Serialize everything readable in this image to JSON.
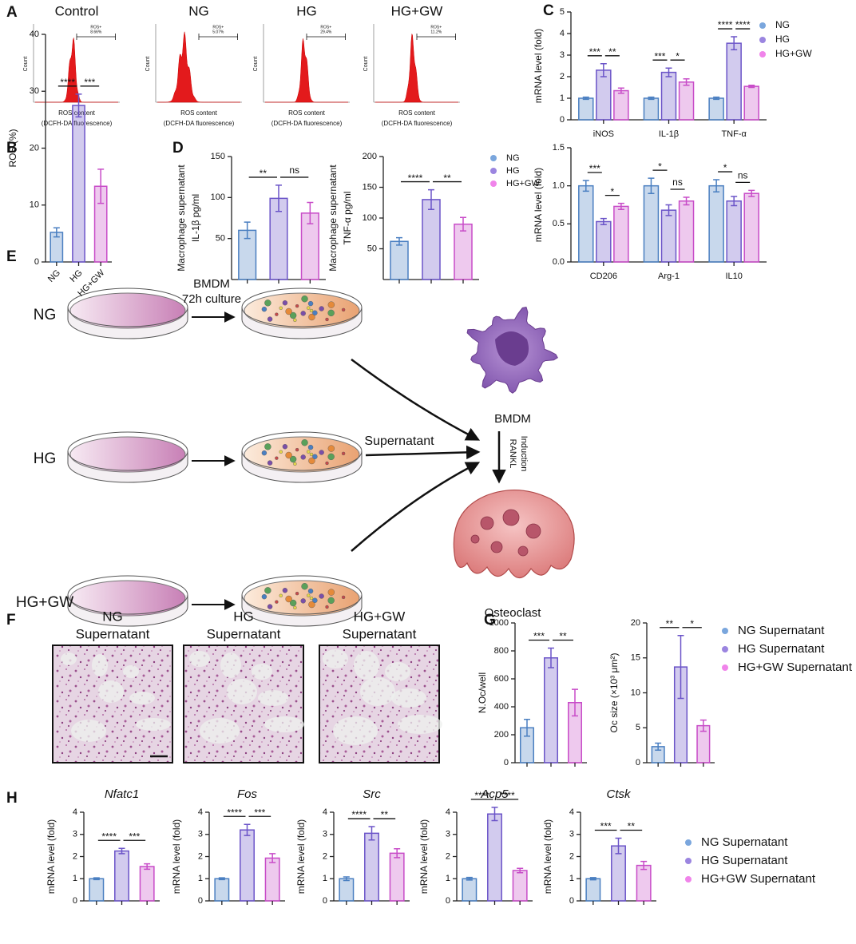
{
  "panel_labels": [
    "A",
    "B",
    "C",
    "D",
    "E",
    "F",
    "G",
    "H"
  ],
  "flow": {
    "titles": [
      "Control",
      "NG",
      "HG",
      "HG+GW"
    ],
    "gate": "ROS+",
    "percents": [
      "8.66%",
      "5.07%",
      "29.4%",
      "11.2%"
    ],
    "y_label": "Count",
    "x_label": [
      "ROS content",
      "(DCFH-DA fluorescence)"
    ]
  },
  "schematic": {
    "groups": [
      "NG",
      "HG",
      "HG+GW"
    ],
    "culture": [
      "BMDM",
      "72h culture"
    ],
    "supernatant": "Supernatant",
    "cell": "BMDM",
    "induction": [
      "RANKL",
      "Induction"
    ],
    "osteoclast": "Osteoclast"
  },
  "staining": {
    "titles": [
      [
        "NG",
        "Supernatant"
      ],
      [
        "HG",
        "Supernatant"
      ],
      [
        "HG+GW",
        "Supernatant"
      ]
    ]
  },
  "legends": [
    {
      "entries": [
        {
          "name": "NG",
          "color": "#7aa6dd"
        },
        {
          "name": "HG",
          "color": "#9b85e0"
        },
        {
          "name": "HG+GW",
          "color": "#f084ea"
        }
      ]
    },
    {
      "entries": [
        {
          "name": "NG",
          "color": "#7aa6dd"
        },
        {
          "name": "HG",
          "color": "#9b85e0"
        },
        {
          "name": "HG+GW",
          "color": "#f084ea"
        }
      ]
    },
    {
      "entries": [
        {
          "name": "NG Supernatant",
          "color": "#7aa6dd"
        },
        {
          "name": "HG Supernatant",
          "color": "#9b85e0"
        },
        {
          "name": "HG+GW Supernatant",
          "color": "#f084ea"
        }
      ]
    },
    {
      "entries": [
        {
          "name": "NG Supernatant",
          "color": "#7aa6dd"
        },
        {
          "name": "HG Supernatant",
          "color": "#9b85e0"
        },
        {
          "name": "HG+GW Supernatant",
          "color": "#f084ea"
        }
      ]
    }
  ],
  "chart_data": [
    {
      "type": "bar",
      "categories": [
        "NG",
        "HG",
        "HG+GW"
      ],
      "values": [
        5.2,
        27.5,
        13.3
      ],
      "errors": [
        0.8,
        2,
        3
      ],
      "colors": [
        "#4a7fc1",
        "#6b54c8",
        "#c84cc8"
      ],
      "ylim": [
        0,
        40
      ],
      "yticks": [
        0,
        10,
        20,
        30,
        40
      ],
      "y_label": "ROS (%)",
      "significance": [
        {
          "from": 0,
          "to": 1,
          "label": "****"
        },
        {
          "from": 1,
          "to": 2,
          "label": "***"
        }
      ]
    },
    {
      "type": "bar",
      "categories": [
        "iNOS",
        "IL-1β",
        "TNF-α"
      ],
      "series": [
        {
          "color": "#4a7fc1",
          "values": [
            1,
            1,
            1
          ],
          "errors": [
            0.05,
            0.05,
            0.05
          ]
        },
        {
          "color": "#6b54c8",
          "values": [
            2.3,
            2.2,
            3.55
          ],
          "errors": [
            0.3,
            0.2,
            0.3
          ]
        },
        {
          "color": "#c84cc8",
          "values": [
            1.35,
            1.75,
            1.55
          ],
          "errors": [
            0.12,
            0.15,
            0.05
          ]
        }
      ],
      "ylim": [
        0,
        5
      ],
      "yticks": [
        0,
        1,
        2,
        3,
        4,
        5
      ],
      "y_label": "mRNA level (fold)",
      "significance": [
        {
          "category": 0,
          "from": 0,
          "to": 1,
          "label": "***"
        },
        {
          "category": 0,
          "from": 1,
          "to": 2,
          "label": "**"
        },
        {
          "category": 1,
          "from": 0,
          "to": 1,
          "label": "***"
        },
        {
          "category": 1,
          "from": 1,
          "to": 2,
          "label": "*"
        },
        {
          "category": 2,
          "from": 0,
          "to": 1,
          "label": "****"
        },
        {
          "category": 2,
          "from": 1,
          "to": 2,
          "label": "****"
        }
      ]
    },
    {
      "type": "bar",
      "categories": [
        "CD206",
        "Arg-1",
        "IL10"
      ],
      "series": [
        {
          "color": "#4a7fc1",
          "values": [
            1,
            1,
            1
          ],
          "errors": [
            0.07,
            0.1,
            0.08
          ]
        },
        {
          "color": "#6b54c8",
          "values": [
            0.53,
            0.68,
            0.8
          ],
          "errors": [
            0.04,
            0.07,
            0.06
          ]
        },
        {
          "color": "#c84cc8",
          "values": [
            0.73,
            0.8,
            0.9
          ],
          "errors": [
            0.04,
            0.05,
            0.04
          ]
        }
      ],
      "ylim": [
        0,
        1.5
      ],
      "yticks": [
        {
          "value": 0,
          "label": "0.0"
        },
        0.5,
        {
          "value": 1,
          "label": "1.0"
        },
        1.5
      ],
      "y_label": "mRNA level (fold)",
      "significance": [
        {
          "category": 0,
          "from": 0,
          "to": 1,
          "label": "***"
        },
        {
          "category": 0,
          "from": 1,
          "to": 2,
          "label": "*"
        },
        {
          "category": 1,
          "from": 0,
          "to": 1,
          "label": "*"
        },
        {
          "category": 1,
          "from": 1,
          "to": 2,
          "label": "ns"
        },
        {
          "category": 2,
          "from": 0,
          "to": 1,
          "label": "*"
        },
        {
          "category": 2,
          "from": 1,
          "to": 2,
          "label": "ns"
        }
      ]
    },
    {
      "type": "bar",
      "categories": [
        null,
        null,
        null
      ],
      "values": [
        60,
        99,
        81
      ],
      "errors": [
        10,
        16,
        13
      ],
      "colors": [
        "#4a7fc1",
        "#6b54c8",
        "#c84cc8"
      ],
      "ylim": [
        0,
        150
      ],
      "yticks": [
        50,
        100,
        150
      ],
      "y_label": [
        "Macrophage supernatant",
        "IL-1β  pg/ml"
      ],
      "significance": [
        {
          "from": 0,
          "to": 1,
          "label": "**"
        },
        {
          "from": 1,
          "to": 2,
          "label": "ns"
        }
      ]
    },
    {
      "type": "bar",
      "categories": [
        null,
        null,
        null
      ],
      "values": [
        62,
        130,
        90
      ],
      "errors": [
        6,
        16,
        11
      ],
      "colors": [
        "#4a7fc1",
        "#6b54c8",
        "#c84cc8"
      ],
      "ylim": [
        0,
        200
      ],
      "yticks": [
        50,
        100,
        150,
        200
      ],
      "y_label": [
        "Macrophage supernatant",
        "TNF-α  pg/ml"
      ],
      "significance": [
        {
          "from": 0,
          "to": 1,
          "label": "****"
        },
        {
          "from": 1,
          "to": 2,
          "label": "**"
        }
      ]
    },
    {
      "type": "bar",
      "categories": [
        null,
        null,
        null
      ],
      "values": [
        250,
        750,
        430
      ],
      "errors": [
        60,
        70,
        95
      ],
      "colors": [
        "#4a7fc1",
        "#6b54c8",
        "#c84cc8"
      ],
      "ylim": [
        0,
        1000
      ],
      "yticks": [
        0,
        200,
        400,
        600,
        800,
        1000
      ],
      "y_label": "N.Oc/well",
      "significance": [
        {
          "from": 0,
          "to": 1,
          "label": "***"
        },
        {
          "from": 1,
          "to": 2,
          "label": "**"
        }
      ]
    },
    {
      "type": "bar",
      "categories": [
        null,
        null,
        null
      ],
      "values": [
        2.3,
        13.7,
        5.3
      ],
      "errors": [
        0.5,
        4.5,
        0.8
      ],
      "colors": [
        "#4a7fc1",
        "#6b54c8",
        "#c84cc8"
      ],
      "ylim": [
        0,
        20
      ],
      "yticks": [
        0,
        5,
        10,
        15,
        20
      ],
      "y_label": "Oc size (×10³ μm²)",
      "significance": [
        {
          "from": 0,
          "to": 1,
          "label": "**"
        },
        {
          "from": 1,
          "to": 2,
          "label": "*"
        }
      ]
    },
    {
      "type": "bar",
      "title": "Nfatc1",
      "categories": [
        null,
        null,
        null
      ],
      "values": [
        1,
        2.25,
        1.55
      ],
      "errors": [
        0.04,
        0.12,
        0.12
      ],
      "colors": [
        "#4a7fc1",
        "#6b54c8",
        "#c84cc8"
      ],
      "ylim": [
        0,
        4
      ],
      "yticks": [
        0,
        1,
        2,
        3,
        4
      ],
      "y_label": "mRNA level (fold)",
      "significance": [
        {
          "from": 0,
          "to": 1,
          "label": "****"
        },
        {
          "from": 1,
          "to": 2,
          "label": "***"
        }
      ]
    },
    {
      "type": "bar",
      "title": "Fos",
      "categories": [
        null,
        null,
        null
      ],
      "values": [
        1,
        3.2,
        1.93
      ],
      "errors": [
        0.04,
        0.25,
        0.2
      ],
      "colors": [
        "#4a7fc1",
        "#6b54c8",
        "#c84cc8"
      ],
      "ylim": [
        0,
        4
      ],
      "yticks": [
        0,
        1,
        2,
        3,
        4
      ],
      "y_label": "mRNA level (fold)",
      "significance": [
        {
          "from": 0,
          "to": 1,
          "label": "****"
        },
        {
          "from": 1,
          "to": 2,
          "label": "***"
        }
      ]
    },
    {
      "type": "bar",
      "title": "Src",
      "categories": [
        null,
        null,
        null
      ],
      "values": [
        1,
        3.05,
        2.15
      ],
      "errors": [
        0.08,
        0.3,
        0.2
      ],
      "colors": [
        "#4a7fc1",
        "#6b54c8",
        "#c84cc8"
      ],
      "ylim": [
        0,
        4
      ],
      "yticks": [
        0,
        1,
        2,
        3,
        4
      ],
      "y_label": "mRNA level (fold)",
      "significance": [
        {
          "from": 0,
          "to": 1,
          "label": "****"
        },
        {
          "from": 1,
          "to": 2,
          "label": "**"
        }
      ]
    },
    {
      "type": "bar",
      "title": "Acp5",
      "categories": [
        null,
        null,
        null
      ],
      "values": [
        1,
        3.92,
        1.37
      ],
      "errors": [
        0.06,
        0.3,
        0.1
      ],
      "colors": [
        "#4a7fc1",
        "#6b54c8",
        "#c84cc8"
      ],
      "ylim": [
        0,
        4
      ],
      "yticks": [
        0,
        1,
        2,
        3,
        4
      ],
      "y_label": "mRNA level (fold)",
      "significance": [
        {
          "from": 0,
          "to": 1,
          "label": "****"
        },
        {
          "from": 1,
          "to": 2,
          "label": "****"
        }
      ]
    },
    {
      "type": "bar",
      "title": "Ctsk",
      "categories": [
        null,
        null,
        null
      ],
      "values": [
        1,
        2.48,
        1.6
      ],
      "errors": [
        0.05,
        0.35,
        0.18
      ],
      "colors": [
        "#4a7fc1",
        "#6b54c8",
        "#c84cc8"
      ],
      "ylim": [
        0,
        4
      ],
      "yticks": [
        0,
        1,
        2,
        3,
        4
      ],
      "y_label": "mRNA level (fold)",
      "significance": [
        {
          "from": 0,
          "to": 1,
          "label": "***"
        },
        {
          "from": 1,
          "to": 2,
          "label": "**"
        }
      ]
    }
  ]
}
